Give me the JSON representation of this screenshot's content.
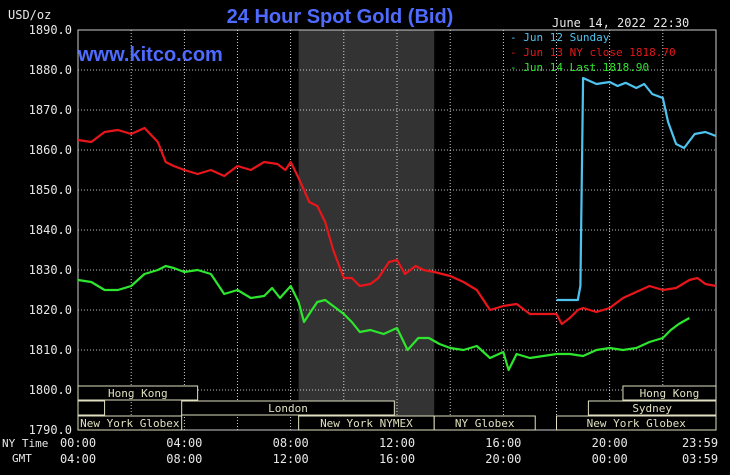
{
  "header": {
    "title": "24 Hour Spot Gold (Bid)",
    "website": "www.kitco.com",
    "unit": "USD/oz",
    "timestamp": "June 14, 2022 22:30"
  },
  "legend": [
    {
      "label": "Jun 12 Sunday",
      "color": "#4ec3ef"
    },
    {
      "label": "Jun 13 NY close 1818.70",
      "color": "#e8161a"
    },
    {
      "label": "Jun 14 Last 1818.90",
      "color": "#2ee62e"
    }
  ],
  "row_labels": {
    "ny_time": "NY Time",
    "gmt": "GMT"
  },
  "colors": {
    "grid": "#ffffff",
    "band": "#333333",
    "bar": "#e0e0c0",
    "text": "#e8e8e8"
  },
  "chart_data": {
    "type": "line",
    "title": "24 Hour Spot Gold (Bid)",
    "ylabel": "USD/oz",
    "ylim": [
      1790,
      1890
    ],
    "xlim": [
      0,
      24
    ],
    "y_ticks": [
      "1890.0",
      "1880.0",
      "1870.0",
      "1860.0",
      "1850.0",
      "1840.0",
      "1830.0",
      "1820.0",
      "1810.0",
      "1800.0",
      "1790.0"
    ],
    "x_ticks_ny": [
      "00:00",
      "04:00",
      "08:00",
      "12:00",
      "16:00",
      "20:00",
      "23:59"
    ],
    "x_ticks_gmt": [
      "04:00",
      "08:00",
      "12:00",
      "16:00",
      "20:00",
      "00:00",
      "03:59"
    ],
    "shaded_hours": [
      8.3,
      13.4
    ],
    "series": [
      {
        "name": "Jun 12 Sunday",
        "color": "#4ec3ef",
        "x": [
          18.0,
          18.8,
          18.9,
          19.0,
          19.5,
          20.0,
          20.3,
          20.6,
          21.0,
          21.3,
          21.6,
          22.0,
          22.2,
          22.5,
          22.8,
          23.2,
          23.6,
          24.0
        ],
        "y": [
          1822.5,
          1822.5,
          1826.0,
          1878.0,
          1876.5,
          1877.0,
          1876.0,
          1876.8,
          1875.5,
          1876.5,
          1874.0,
          1873.0,
          1867.0,
          1861.5,
          1860.5,
          1864.0,
          1864.5,
          1863.5
        ]
      },
      {
        "name": "Jun 13 NY close 1818.70",
        "color": "#e8161a",
        "x": [
          0.0,
          0.5,
          1.0,
          1.5,
          2.0,
          2.5,
          3.0,
          3.3,
          3.6,
          4.0,
          4.5,
          5.0,
          5.5,
          6.0,
          6.5,
          7.0,
          7.5,
          7.8,
          8.0,
          8.3,
          8.7,
          9.0,
          9.3,
          9.6,
          10.0,
          10.3,
          10.6,
          11.0,
          11.3,
          11.7,
          12.0,
          12.3,
          12.7,
          13.0,
          13.4,
          13.7,
          14.0,
          14.5,
          15.0,
          15.5,
          16.0,
          16.5,
          17.0,
          17.5,
          18.0,
          18.2,
          18.5,
          18.8,
          19.0,
          19.5,
          20.0,
          20.5,
          21.0,
          21.5,
          22.0,
          22.5,
          23.0,
          23.3,
          23.6,
          24.0
        ],
        "y": [
          1862.5,
          1862.0,
          1864.5,
          1865.0,
          1864.0,
          1865.5,
          1862.0,
          1857.0,
          1856.0,
          1855.0,
          1854.0,
          1855.0,
          1853.5,
          1856.0,
          1855.0,
          1857.0,
          1856.5,
          1855.0,
          1857.0,
          1853.0,
          1847.0,
          1846.0,
          1842.0,
          1835.0,
          1828.0,
          1828.0,
          1826.0,
          1826.5,
          1828.0,
          1832.0,
          1832.5,
          1829.0,
          1831.0,
          1830.0,
          1829.5,
          1829.0,
          1828.5,
          1827.0,
          1825.0,
          1820.0,
          1821.0,
          1821.5,
          1819.0,
          1819.0,
          1819.0,
          1816.5,
          1818.0,
          1820.0,
          1820.5,
          1819.5,
          1820.5,
          1823.0,
          1824.5,
          1826.0,
          1825.0,
          1825.5,
          1827.5,
          1828.0,
          1826.5,
          1826.0
        ]
      },
      {
        "name": "Jun 14 Last 1818.90",
        "color": "#2ee62e",
        "x": [
          0.0,
          0.5,
          1.0,
          1.5,
          2.0,
          2.5,
          3.0,
          3.3,
          3.6,
          4.0,
          4.5,
          5.0,
          5.5,
          6.0,
          6.5,
          7.0,
          7.3,
          7.6,
          8.0,
          8.3,
          8.5,
          8.8,
          9.0,
          9.3,
          9.6,
          10.0,
          10.3,
          10.6,
          11.0,
          11.5,
          12.0,
          12.4,
          12.8,
          13.2,
          13.6,
          14.0,
          14.5,
          15.0,
          15.5,
          16.0,
          16.2,
          16.5,
          17.0,
          17.5,
          18.0,
          18.5,
          19.0,
          19.5,
          20.0,
          20.5,
          21.0,
          21.5,
          22.0,
          22.3,
          22.6,
          23.0
        ],
        "y": [
          1827.5,
          1827.0,
          1825.0,
          1825.0,
          1826.0,
          1829.0,
          1830.0,
          1831.0,
          1830.5,
          1829.5,
          1830.0,
          1829.0,
          1824.0,
          1825.0,
          1823.0,
          1823.5,
          1825.5,
          1823.0,
          1826.0,
          1822.0,
          1817.0,
          1820.0,
          1822.0,
          1822.5,
          1821.0,
          1819.0,
          1817.0,
          1814.5,
          1815.0,
          1814.0,
          1815.5,
          1810.0,
          1813.0,
          1813.0,
          1811.5,
          1810.5,
          1810.0,
          1811.0,
          1808.0,
          1809.5,
          1805.0,
          1809.0,
          1808.0,
          1808.5,
          1809.0,
          1809.0,
          1808.5,
          1810.0,
          1810.5,
          1810.0,
          1810.5,
          1812.0,
          1813.0,
          1815.0,
          1816.5,
          1818.0
        ]
      }
    ],
    "sessions": [
      {
        "name": "Hong Kong",
        "start": 0.0,
        "end": 4.5,
        "row": 0
      },
      {
        "name": "Hong Kong",
        "start": 20.5,
        "end": 24.0,
        "row": 0
      },
      {
        "name": "",
        "start": 0.0,
        "end": 1.0,
        "row": 1
      },
      {
        "name": "London",
        "start": 3.9,
        "end": 11.9,
        "row": 1
      },
      {
        "name": "Sydney",
        "start": 19.2,
        "end": 24.0,
        "row": 1
      },
      {
        "name": "New York Globex",
        "start": 0.0,
        "end": 3.9,
        "row": 2
      },
      {
        "name": "New York NYMEX",
        "start": 8.3,
        "end": 13.4,
        "row": 2
      },
      {
        "name": "NY Globex",
        "start": 13.4,
        "end": 17.2,
        "row": 2
      },
      {
        "name": "New York Globex",
        "start": 18.0,
        "end": 24.0,
        "row": 2
      }
    ]
  }
}
